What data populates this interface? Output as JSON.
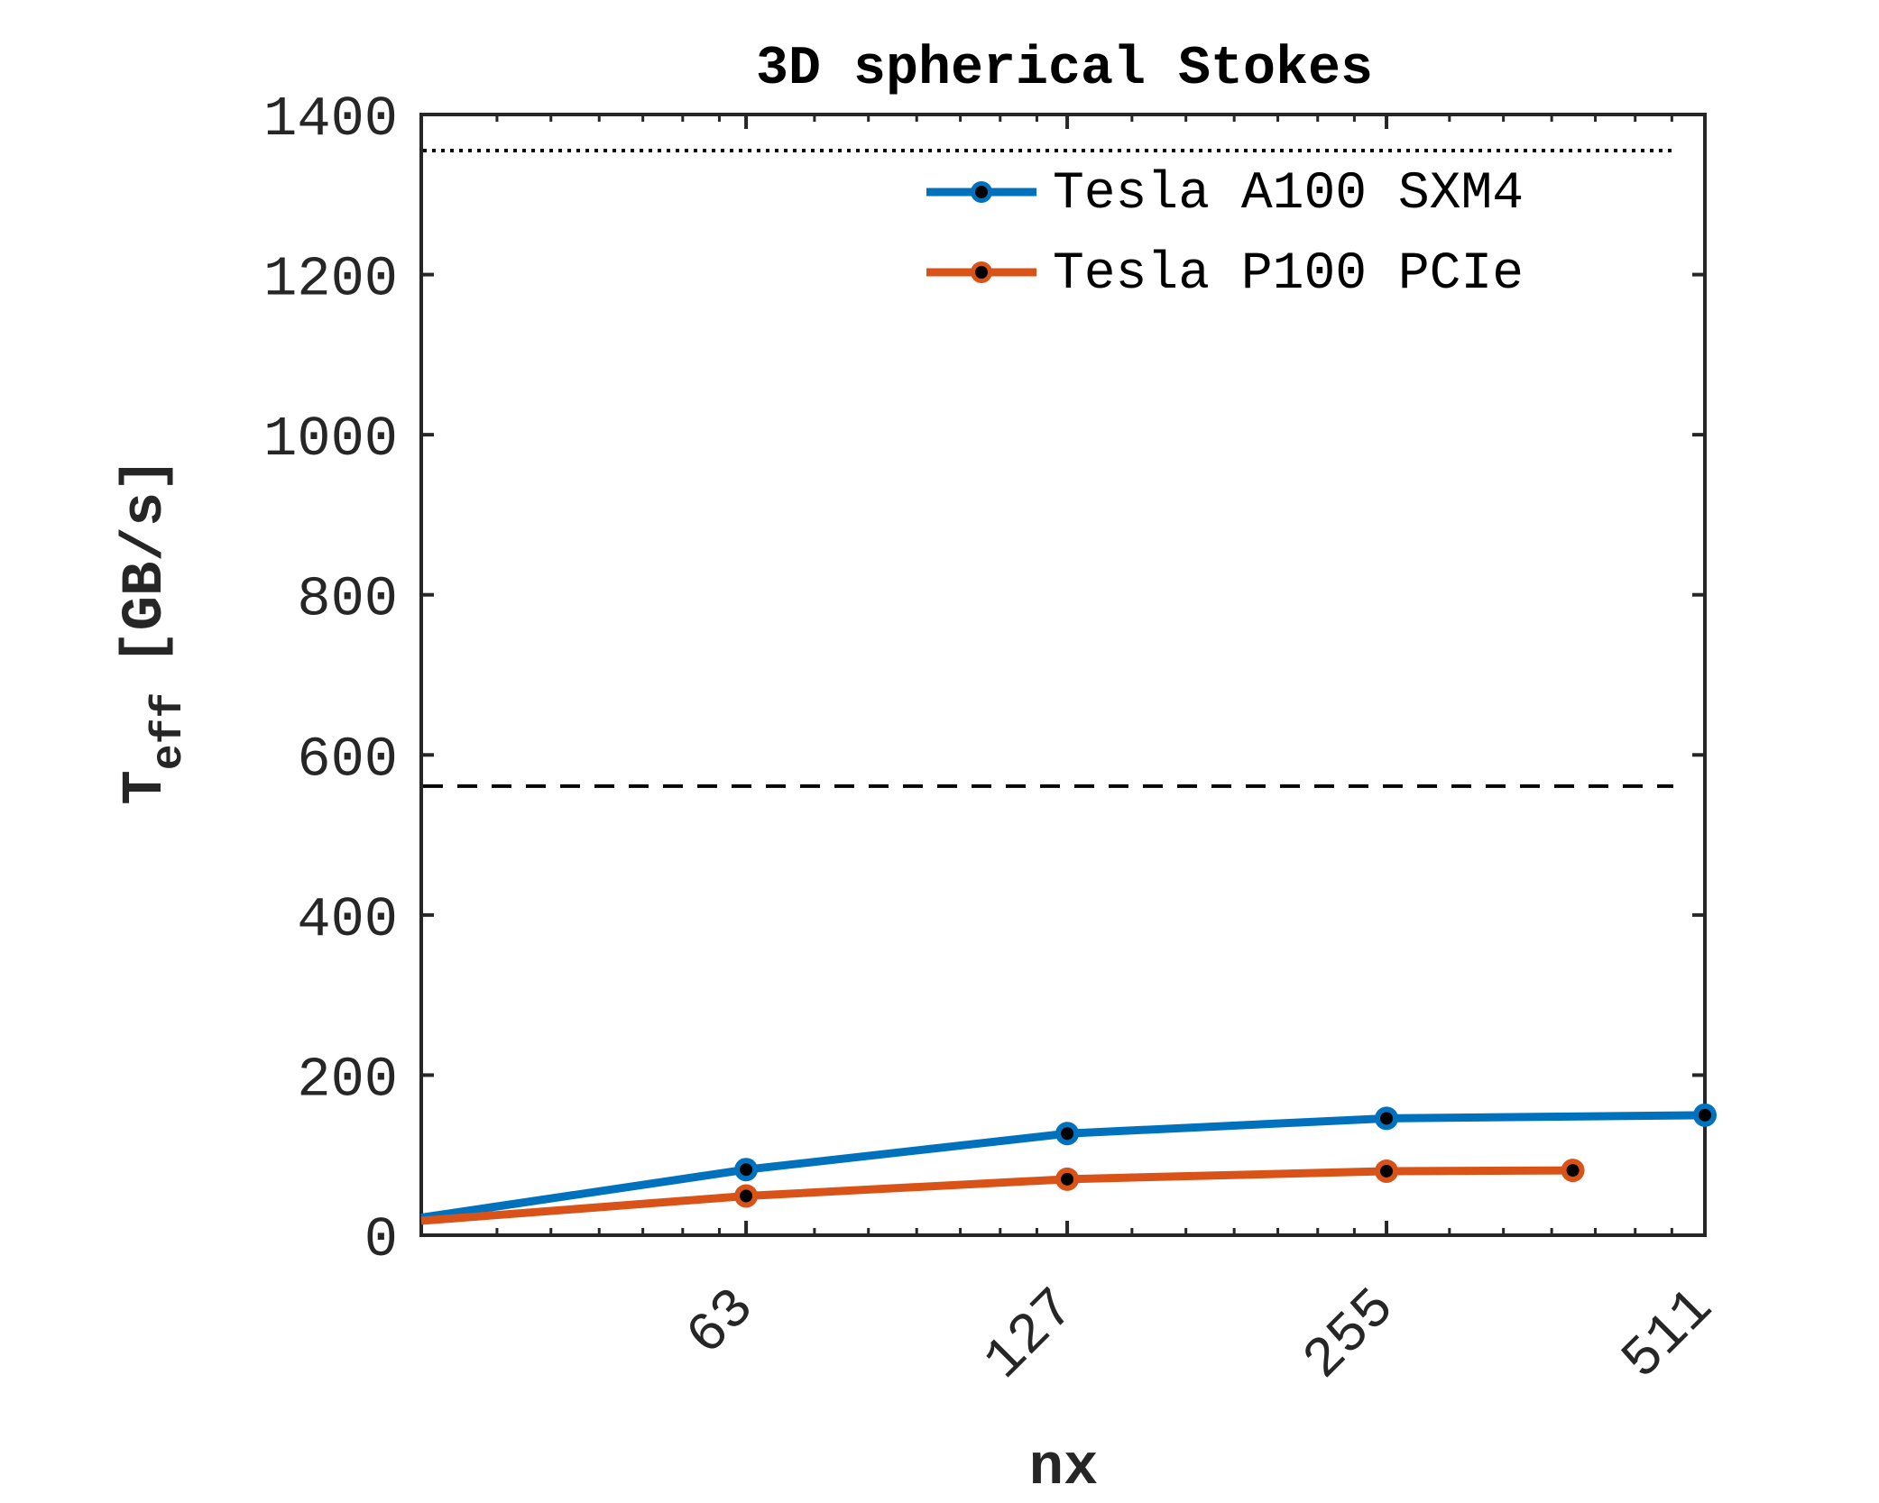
{
  "chart_data": {
    "type": "line",
    "title": "3D spherical Stokes",
    "xlabel": "nx",
    "ylabel": "T",
    "ylabel_subscript": "eff",
    "ylabel_unit": "[GB/s]",
    "x_scale": "log2",
    "x_ticks": [
      63,
      127,
      255,
      511
    ],
    "x_tick_labels": [
      "63",
      "127",
      "255",
      "511"
    ],
    "xlim": [
      31,
      511
    ],
    "ylim": [
      0,
      1400
    ],
    "y_ticks": [
      0,
      200,
      400,
      600,
      800,
      1000,
      1200,
      1400
    ],
    "y_tick_labels": [
      "0",
      "200",
      "400",
      "600",
      "800",
      "1000",
      "1200",
      "1400"
    ],
    "grid": false,
    "legend_position": "top-right",
    "series": [
      {
        "name": "Tesla A100 SXM4",
        "color": "#0072BD",
        "x": [
          31,
          63,
          127,
          255,
          511
        ],
        "values": [
          22,
          82,
          127,
          146,
          150
        ]
      },
      {
        "name": "Tesla P100 PCIe",
        "color": "#D95319",
        "x": [
          31,
          63,
          127,
          255,
          383
        ],
        "values": [
          18,
          49,
          70,
          80,
          81
        ]
      }
    ],
    "reference_lines": [
      {
        "value": 1355,
        "style": "dotted",
        "color": "#000000"
      },
      {
        "value": 561,
        "style": "dashed",
        "color": "#000000"
      }
    ]
  }
}
